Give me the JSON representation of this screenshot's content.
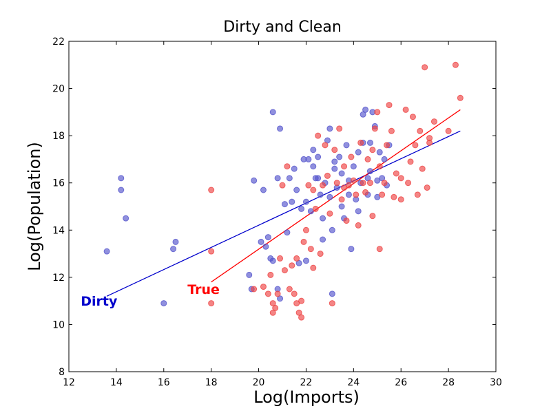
{
  "chart_data": {
    "type": "scatter",
    "title": "Dirty and Clean",
    "xlabel": "Log(Imports)",
    "ylabel": "Log(Population)",
    "xlim": [
      12,
      30
    ],
    "ylim": [
      8,
      22
    ],
    "xticks": [
      12,
      14,
      16,
      18,
      20,
      22,
      24,
      26,
      28,
      30
    ],
    "yticks": [
      8,
      10,
      12,
      14,
      16,
      18,
      20,
      22
    ],
    "grid": false,
    "series": [
      {
        "name": "Dirty",
        "color": "#0000cc",
        "marker_color": "#5555cc",
        "points": [
          [
            13.6,
            13.1
          ],
          [
            14.2,
            16.2
          ],
          [
            14.2,
            15.7
          ],
          [
            14.4,
            14.5
          ],
          [
            16.0,
            10.9
          ],
          [
            16.4,
            13.2
          ],
          [
            16.5,
            13.5
          ],
          [
            19.6,
            12.1
          ],
          [
            19.7,
            11.5
          ],
          [
            19.8,
            16.1
          ],
          [
            20.1,
            13.5
          ],
          [
            20.2,
            15.7
          ],
          [
            20.3,
            13.3
          ],
          [
            20.4,
            13.7
          ],
          [
            20.5,
            12.8
          ],
          [
            20.6,
            19.0
          ],
          [
            20.6,
            12.7
          ],
          [
            20.8,
            11.5
          ],
          [
            20.8,
            16.2
          ],
          [
            20.9,
            18.3
          ],
          [
            20.9,
            11.1
          ],
          [
            21.1,
            15.1
          ],
          [
            21.2,
            13.9
          ],
          [
            21.3,
            16.2
          ],
          [
            21.5,
            16.6
          ],
          [
            21.6,
            15.7
          ],
          [
            21.7,
            12.6
          ],
          [
            21.8,
            14.9
          ],
          [
            21.9,
            17.0
          ],
          [
            22.0,
            15.2
          ],
          [
            22.0,
            12.7
          ],
          [
            22.2,
            14.8
          ],
          [
            22.3,
            17.4
          ],
          [
            22.3,
            16.7
          ],
          [
            22.4,
            16.2
          ],
          [
            22.5,
            17.1
          ],
          [
            22.6,
            15.5
          ],
          [
            22.7,
            13.6
          ],
          [
            22.7,
            14.5
          ],
          [
            22.8,
            16.0
          ],
          [
            22.9,
            17.8
          ],
          [
            23.0,
            18.3
          ],
          [
            23.0,
            15.4
          ],
          [
            23.1,
            11.3
          ],
          [
            23.1,
            14.0
          ],
          [
            23.2,
            16.6
          ],
          [
            23.3,
            15.8
          ],
          [
            23.4,
            17.1
          ],
          [
            23.5,
            16.4
          ],
          [
            23.5,
            15.0
          ],
          [
            23.6,
            14.5
          ],
          [
            23.7,
            17.6
          ],
          [
            23.8,
            16.1
          ],
          [
            23.9,
            13.2
          ],
          [
            24.0,
            16.7
          ],
          [
            24.1,
            15.3
          ],
          [
            24.2,
            17.3
          ],
          [
            24.2,
            14.8
          ],
          [
            24.3,
            16.0
          ],
          [
            24.4,
            17.7
          ],
          [
            24.4,
            18.9
          ],
          [
            24.5,
            19.1
          ],
          [
            24.6,
            15.5
          ],
          [
            24.7,
            16.5
          ],
          [
            24.7,
            17.7
          ],
          [
            24.8,
            19.0
          ],
          [
            24.9,
            18.4
          ],
          [
            25.0,
            16.1
          ],
          [
            25.0,
            15.4
          ],
          [
            25.1,
            17.3
          ],
          [
            25.2,
            16.2
          ],
          [
            25.3,
            17.0
          ],
          [
            25.4,
            15.9
          ],
          [
            25.5,
            17.6
          ],
          [
            23.2,
            16.9
          ],
          [
            22.1,
            17.0
          ],
          [
            21.4,
            15.2
          ],
          [
            23.8,
            15.5
          ],
          [
            24.6,
            16.2
          ],
          [
            22.5,
            16.2
          ]
        ],
        "fit": [
          [
            13.6,
            11.2
          ],
          [
            28.5,
            18.2
          ]
        ]
      },
      {
        "name": "True",
        "color": "#ff0000",
        "marker_color": "#ee4444",
        "points": [
          [
            18.0,
            15.7
          ],
          [
            18.0,
            13.1
          ],
          [
            18.0,
            10.9
          ],
          [
            19.8,
            11.5
          ],
          [
            20.2,
            11.6
          ],
          [
            20.4,
            11.3
          ],
          [
            20.5,
            12.1
          ],
          [
            20.6,
            10.9
          ],
          [
            20.6,
            10.5
          ],
          [
            20.7,
            10.7
          ],
          [
            20.8,
            11.3
          ],
          [
            20.9,
            12.8
          ],
          [
            21.0,
            15.9
          ],
          [
            21.1,
            12.3
          ],
          [
            21.2,
            16.7
          ],
          [
            21.3,
            11.5
          ],
          [
            21.4,
            12.5
          ],
          [
            21.5,
            11.3
          ],
          [
            21.6,
            10.9
          ],
          [
            21.6,
            12.8
          ],
          [
            21.7,
            10.5
          ],
          [
            21.8,
            10.3
          ],
          [
            21.8,
            11.0
          ],
          [
            21.9,
            13.5
          ],
          [
            22.0,
            14.0
          ],
          [
            22.1,
            15.9
          ],
          [
            22.2,
            13.2
          ],
          [
            22.3,
            12.4
          ],
          [
            22.4,
            14.9
          ],
          [
            22.5,
            18.0
          ],
          [
            22.6,
            13.0
          ],
          [
            22.7,
            15.9
          ],
          [
            22.8,
            17.6
          ],
          [
            22.9,
            16.3
          ],
          [
            23.0,
            14.7
          ],
          [
            23.1,
            10.9
          ],
          [
            23.2,
            17.4
          ],
          [
            23.3,
            16.0
          ],
          [
            23.4,
            18.3
          ],
          [
            23.5,
            15.3
          ],
          [
            23.6,
            16.7
          ],
          [
            23.7,
            14.4
          ],
          [
            23.8,
            15.9
          ],
          [
            23.9,
            17.1
          ],
          [
            24.0,
            16.1
          ],
          [
            24.1,
            15.5
          ],
          [
            24.2,
            14.2
          ],
          [
            24.3,
            17.7
          ],
          [
            24.4,
            16.0
          ],
          [
            24.5,
            15.6
          ],
          [
            24.6,
            17.0
          ],
          [
            24.7,
            16.0
          ],
          [
            24.8,
            14.6
          ],
          [
            24.9,
            18.3
          ],
          [
            25.0,
            19.0
          ],
          [
            25.1,
            16.7
          ],
          [
            25.1,
            13.2
          ],
          [
            25.2,
            15.5
          ],
          [
            25.3,
            16.0
          ],
          [
            25.4,
            17.6
          ],
          [
            25.5,
            19.3
          ],
          [
            25.6,
            18.2
          ],
          [
            25.7,
            15.4
          ],
          [
            25.8,
            16.4
          ],
          [
            26.0,
            15.3
          ],
          [
            26.2,
            19.1
          ],
          [
            26.3,
            16.0
          ],
          [
            26.4,
            16.9
          ],
          [
            26.5,
            18.8
          ],
          [
            26.6,
            17.6
          ],
          [
            26.7,
            15.5
          ],
          [
            26.8,
            18.2
          ],
          [
            26.9,
            16.6
          ],
          [
            27.0,
            20.9
          ],
          [
            27.1,
            15.8
          ],
          [
            27.2,
            17.9
          ],
          [
            27.4,
            18.6
          ],
          [
            28.0,
            18.2
          ],
          [
            28.3,
            21.0
          ],
          [
            28.5,
            19.6
          ],
          [
            27.2,
            17.7
          ],
          [
            26.0,
            16.2
          ],
          [
            24.8,
            17.4
          ],
          [
            23.6,
            15.8
          ],
          [
            22.3,
            15.7
          ]
        ],
        "fit": [
          [
            18.0,
            11.8
          ],
          [
            28.5,
            19.1
          ]
        ]
      }
    ],
    "annotations": [
      {
        "text": "Dirty",
        "x": 12.5,
        "y": 11.0,
        "color": "#0000cc"
      },
      {
        "text": "True",
        "x": 17.0,
        "y": 11.5,
        "color": "#ff0000"
      }
    ]
  }
}
